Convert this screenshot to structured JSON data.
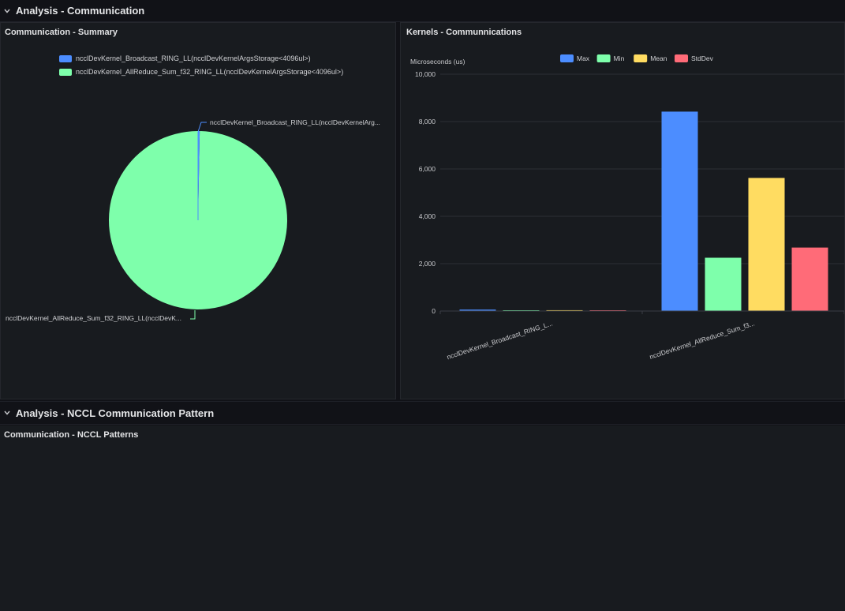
{
  "rows": {
    "analysis_communication": "Analysis - Communication",
    "analysis_nccl": "Analysis - NCCL Communication Pattern"
  },
  "panels": {
    "summary": {
      "title": "Communication - Summary",
      "legend": [
        {
          "label": "ncclDevKernel_Broadcast_RING_LL(ncclDevKernelArgsStorage<4096ul>)",
          "color": "#4c8dff"
        },
        {
          "label": "ncclDevKernel_AllReduce_Sum_f32_RING_LL(ncclDevKernelArgsStorage<4096ul>)",
          "color": "#7effab"
        }
      ],
      "pie_labels": {
        "broadcast": "ncclDevKernel_Broadcast_RING_LL(ncclDevKernelArg...",
        "allreduce": "ncclDevKernel_AllReduce_Sum_f32_RING_LL(ncclDevK..."
      }
    },
    "kernels": {
      "title": "Kernels - Communnications"
    },
    "patterns": {
      "title": "Communication - NCCL Patterns"
    }
  },
  "chart_data": [
    {
      "type": "pie",
      "title": "Communication - Summary",
      "slices": [
        {
          "label": "ncclDevKernel_Broadcast_RING_LL(ncclDevKernelArgsStorage<4096ul>)",
          "value": 0.3,
          "color": "#4c8dff"
        },
        {
          "label": "ncclDevKernel_AllReduce_Sum_f32_RING_LL(ncclDevKernelArgsStorage<4096ul>)",
          "value": 99.7,
          "color": "#7effab"
        }
      ]
    },
    {
      "type": "bar",
      "title": "Kernels - Communnications",
      "ylabel": "Microseconds (us)",
      "ylim": [
        0,
        10000
      ],
      "yticks": [
        0,
        2000,
        4000,
        6000,
        8000,
        10000
      ],
      "ytick_labels": [
        "0",
        "2,000",
        "4,000",
        "6,000",
        "8,000",
        "10,000"
      ],
      "categories": [
        "ncclDevKernel_Broadcast_RING_L...",
        "ncclDevKernel_AllReduce_Sum_f3..."
      ],
      "series": [
        {
          "name": "Max",
          "color": "#4c8dff",
          "values": [
            60,
            8420
          ]
        },
        {
          "name": "Min",
          "color": "#7effab",
          "values": [
            15,
            2250
          ]
        },
        {
          "name": "Mean",
          "color": "#ffdc61",
          "values": [
            35,
            5620
          ]
        },
        {
          "name": "StdDev",
          "color": "#ff6b78",
          "values": [
            20,
            2680
          ]
        }
      ]
    }
  ]
}
